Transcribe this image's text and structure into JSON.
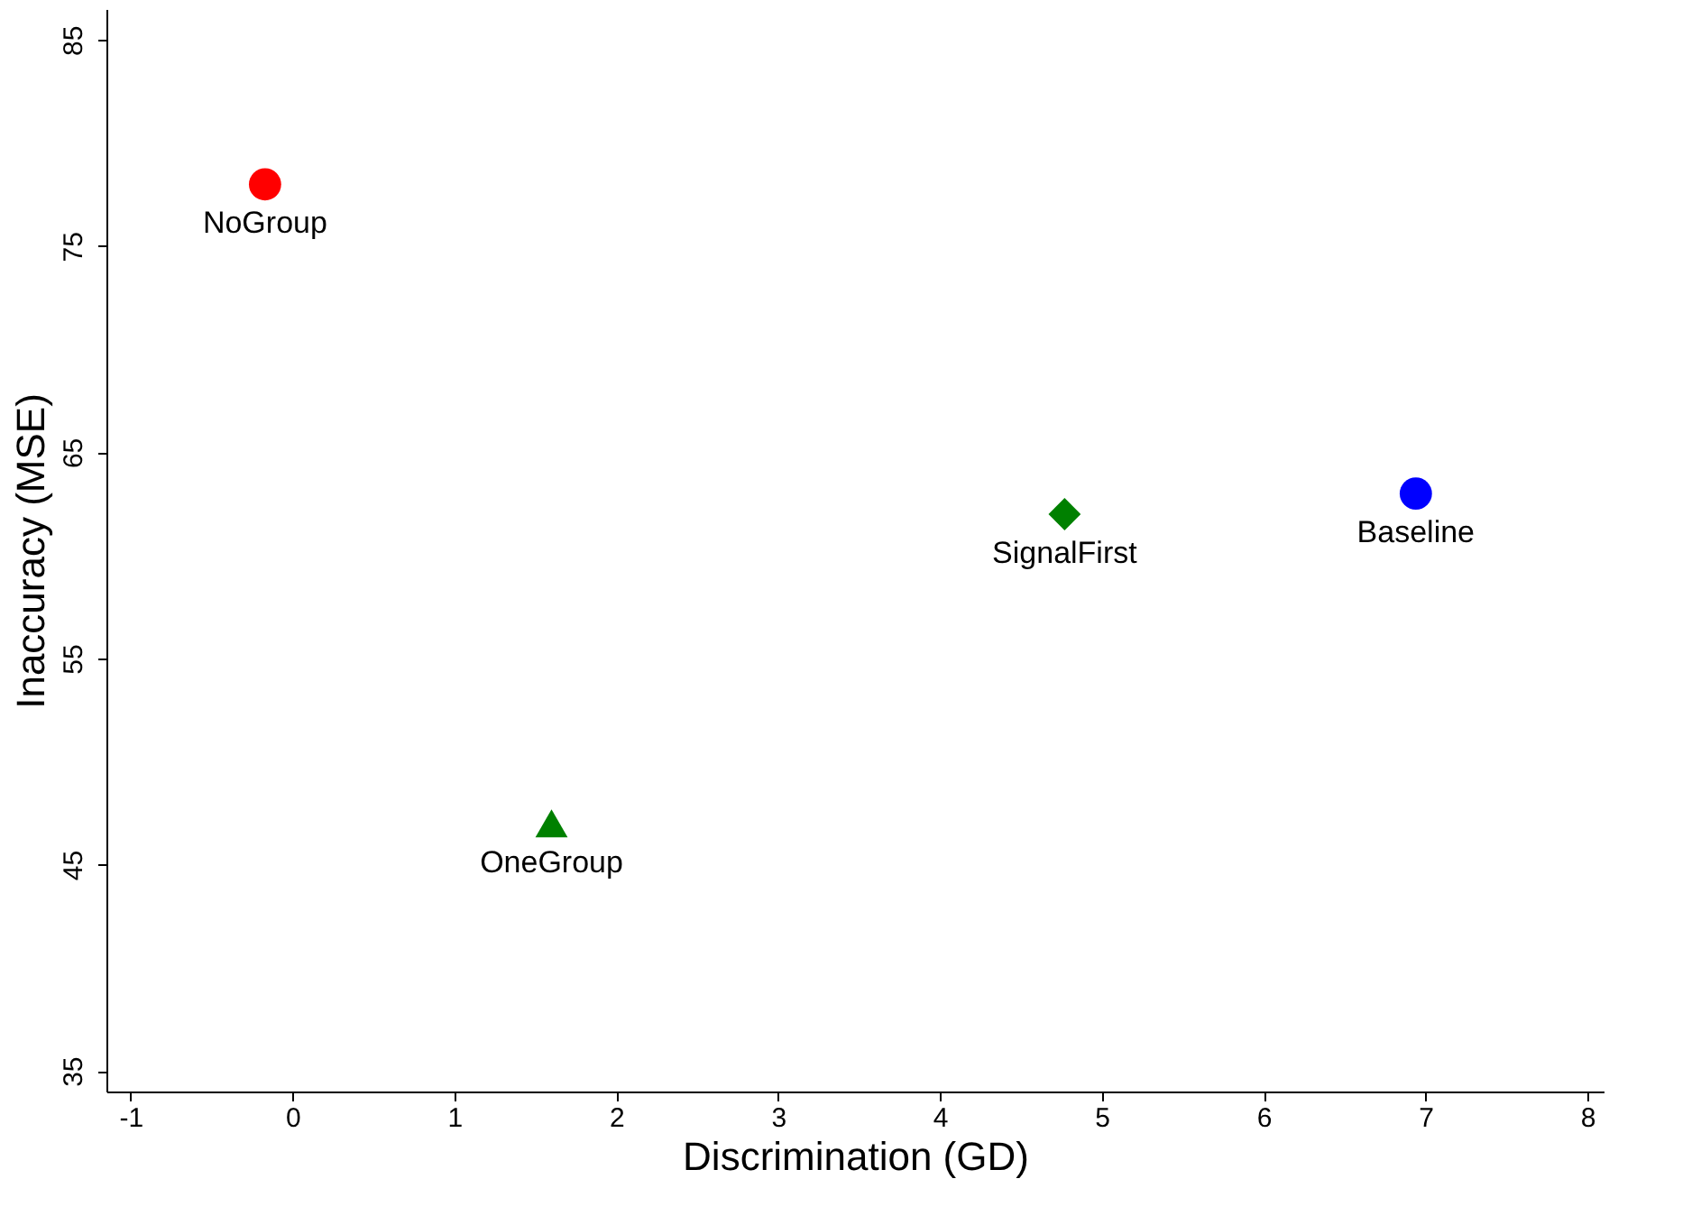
{
  "chart_data": {
    "type": "scatter",
    "xlabel": "Discrimination (GD)",
    "ylabel": "Inaccuracy (MSE)",
    "xlim": [
      -1.15,
      8.1
    ],
    "ylim": [
      34,
      86.5
    ],
    "xticks": [
      -1,
      0,
      1,
      2,
      3,
      4,
      5,
      6,
      7,
      8
    ],
    "yticks": [
      35,
      45,
      55,
      65,
      75,
      85
    ],
    "grid": false,
    "series": [
      {
        "name": "NoGroup",
        "color": "#ff0000",
        "marker": "circle",
        "x": [
          -0.17
        ],
        "values": [
          78
        ]
      },
      {
        "name": "OneGroup",
        "color": "#008000",
        "marker": "triangle",
        "x": [
          1.6
        ],
        "values": [
          47
        ]
      },
      {
        "name": "SignalFirst",
        "color": "#008000",
        "marker": "diamond",
        "x": [
          4.77
        ],
        "values": [
          62
        ]
      },
      {
        "name": "Baseline",
        "color": "#0000ff",
        "marker": "circle",
        "x": [
          6.94
        ],
        "values": [
          63
        ]
      }
    ]
  }
}
